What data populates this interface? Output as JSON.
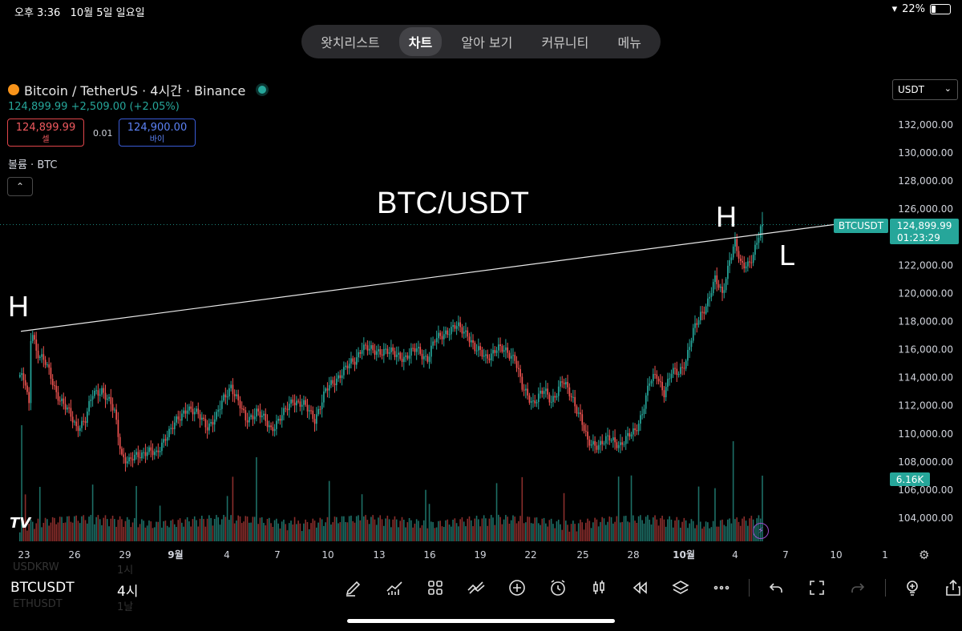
{
  "status": {
    "time": "오후 3:36",
    "date": "10월 5일 일요일",
    "battery": "22%"
  },
  "tabs": [
    "왓치리스트",
    "차트",
    "알아 보기",
    "커뮤니티",
    "메뉴"
  ],
  "active_tab": "차트",
  "header": {
    "symbol_line": "Bitcoin / TetherUS · 4시간 · Binance",
    "price_change": "124,899.99  +2,509.00 (+2.05%)",
    "sell_price": "124,899.99",
    "sell_label": "셀",
    "spread": "0.01",
    "buy_price": "124,900.00",
    "buy_label": "바이",
    "volume_label": "볼륨 · BTC"
  },
  "currency": "USDT",
  "price_tag": {
    "symbol": "BTCUSDT",
    "price": "124,899.99",
    "countdown": "01:23:29"
  },
  "volume_tag": "6.16K",
  "bottom": {
    "symbol": "BTCUSDT",
    "timeframe": "4시",
    "ghost_prev_symbol": "USDKRW",
    "ghost_prev_tf": "1시",
    "ghost_next_symbol": "ETHUSDT",
    "ghost_next_tf": "1날"
  },
  "icons": [
    "pen-icon",
    "indicators-icon",
    "grid-icon",
    "compare-icon",
    "add-icon",
    "alarm-icon",
    "candles-icon",
    "replay-icon",
    "layers-icon",
    "more-icon",
    "undo-icon",
    "fullscreen-icon",
    "redo-icon",
    "idea-icon",
    "share-icon"
  ],
  "colors": {
    "up": "#26a69a",
    "down": "#ef5350",
    "background": "#000000",
    "accent": "#26a69a"
  },
  "chart_data": {
    "type": "candlestick",
    "title": "",
    "ylim": [
      103000,
      133500
    ],
    "y_ticks": [
      104000,
      106000,
      108000,
      110000,
      112000,
      114000,
      116000,
      118000,
      120000,
      122000,
      124000,
      126000,
      128000,
      130000,
      132000
    ],
    "x_ticks": [
      "23",
      "26",
      "29",
      "9월",
      "4",
      "7",
      "10",
      "13",
      "16",
      "19",
      "22",
      "25",
      "28",
      "10월",
      "4",
      "7",
      "10",
      "1"
    ],
    "annotations": [
      {
        "text": "BTC/USDT"
      },
      {
        "text": "H",
        "at_price": 118400
      },
      {
        "text": "H",
        "at_price": 125000
      },
      {
        "text": "L",
        "at_price": 122800
      }
    ],
    "trendline": {
      "start": {
        "x_tick": "23",
        "price": 117300
      },
      "end": {
        "price": 124900
      }
    },
    "last_price": 124899.99,
    "anchor_closes": [
      [
        0,
        114200
      ],
      [
        3,
        113500
      ],
      [
        5,
        111900
      ],
      [
        6,
        116800
      ],
      [
        7,
        117300
      ],
      [
        9,
        116000
      ],
      [
        14,
        115000
      ],
      [
        20,
        113000
      ],
      [
        28,
        111200
      ],
      [
        31,
        110500
      ],
      [
        36,
        111000
      ],
      [
        40,
        112800
      ],
      [
        45,
        113200
      ],
      [
        52,
        111500
      ],
      [
        56,
        108500
      ],
      [
        60,
        108000
      ],
      [
        70,
        108900
      ],
      [
        75,
        108400
      ],
      [
        80,
        109900
      ],
      [
        88,
        111100
      ],
      [
        92,
        112000
      ],
      [
        96,
        111500
      ],
      [
        103,
        110600
      ],
      [
        108,
        111200
      ],
      [
        112,
        112500
      ],
      [
        116,
        113500
      ],
      [
        120,
        112200
      ],
      [
        124,
        111000
      ],
      [
        130,
        111600
      ],
      [
        138,
        110400
      ],
      [
        145,
        111400
      ],
      [
        150,
        112500
      ],
      [
        156,
        112000
      ],
      [
        162,
        111100
      ],
      [
        168,
        113000
      ],
      [
        176,
        114300
      ],
      [
        184,
        115200
      ],
      [
        188,
        116300
      ],
      [
        194,
        115800
      ],
      [
        200,
        116000
      ],
      [
        206,
        115600
      ],
      [
        212,
        115500
      ],
      [
        218,
        116000
      ],
      [
        224,
        115400
      ],
      [
        228,
        116600
      ],
      [
        234,
        117300
      ],
      [
        240,
        117600
      ],
      [
        246,
        117200
      ],
      [
        250,
        116000
      ],
      [
        256,
        115500
      ],
      [
        262,
        116000
      ],
      [
        268,
        115900
      ],
      [
        272,
        115400
      ],
      [
        276,
        113200
      ],
      [
        282,
        112300
      ],
      [
        288,
        113000
      ],
      [
        292,
        112400
      ],
      [
        298,
        113700
      ],
      [
        304,
        112500
      ],
      [
        308,
        111200
      ],
      [
        312,
        109300
      ],
      [
        318,
        109300
      ],
      [
        324,
        109600
      ],
      [
        330,
        109300
      ],
      [
        334,
        109700
      ],
      [
        338,
        110200
      ],
      [
        342,
        111600
      ],
      [
        346,
        113600
      ],
      [
        350,
        114200
      ],
      [
        354,
        113000
      ],
      [
        358,
        114300
      ],
      [
        362,
        114400
      ],
      [
        366,
        115300
      ],
      [
        370,
        117200
      ],
      [
        374,
        118500
      ],
      [
        378,
        119500
      ],
      [
        382,
        120900
      ],
      [
        386,
        120000
      ],
      [
        390,
        122500
      ],
      [
        393,
        123500
      ],
      [
        396,
        122000
      ],
      [
        400,
        122200
      ],
      [
        403,
        122700
      ],
      [
        406,
        124000
      ],
      [
        408,
        124900
      ]
    ]
  }
}
